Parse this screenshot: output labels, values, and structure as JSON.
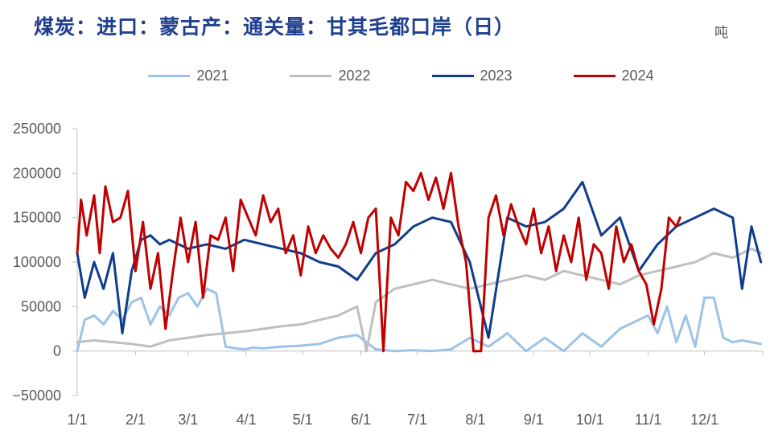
{
  "chart_data": {
    "type": "line",
    "title": "煤炭：进口：蒙古产：通关量：甘其毛都口岸（日）",
    "unit_label": "吨",
    "x_ticks": [
      "1/1",
      "2/1",
      "3/1",
      "4/1",
      "5/1",
      "6/1",
      "7/1",
      "8/1",
      "9/1",
      "10/1",
      "11/1",
      "12/1"
    ],
    "y_ticks": [
      "250000",
      "200000",
      "150000",
      "100000",
      "50000",
      "0",
      "−50000"
    ],
    "ylim": [
      -50000,
      250000
    ],
    "legend_position": "top-center",
    "series": [
      {
        "name": "2021",
        "color": "#9dc3e6",
        "x": [
          1,
          5,
          10,
          15,
          20,
          25,
          30,
          35,
          40,
          45,
          50,
          55,
          60,
          65,
          70,
          75,
          80,
          85,
          90,
          95,
          100,
          110,
          120,
          130,
          140,
          150,
          160,
          170,
          180,
          190,
          200,
          210,
          220,
          230,
          240,
          250,
          260,
          270,
          280,
          290,
          300,
          305,
          310,
          315,
          320,
          325,
          330,
          335,
          340,
          345,
          350,
          355,
          360,
          365
        ],
        "y": [
          0,
          35000,
          40000,
          30000,
          45000,
          35000,
          55000,
          60000,
          30000,
          50000,
          40000,
          60000,
          65000,
          50000,
          70000,
          65000,
          5000,
          3000,
          2000,
          4000,
          3000,
          5000,
          6000,
          8000,
          15000,
          18000,
          2000,
          0,
          1000,
          0,
          2000,
          15000,
          5000,
          20000,
          0,
          15000,
          0,
          20000,
          5000,
          25000,
          35000,
          40000,
          20000,
          50000,
          10000,
          40000,
          5000,
          60000,
          60000,
          15000,
          10000,
          12000,
          10000,
          8000
        ]
      },
      {
        "name": "2022",
        "color": "#bfbfbf",
        "x": [
          1,
          10,
          20,
          30,
          40,
          50,
          60,
          70,
          80,
          90,
          100,
          110,
          120,
          130,
          140,
          150,
          155,
          160,
          170,
          180,
          190,
          200,
          210,
          220,
          230,
          240,
          250,
          260,
          270,
          280,
          290,
          300,
          310,
          320,
          330,
          340,
          350,
          360,
          365
        ],
        "y": [
          10000,
          12000,
          10000,
          8000,
          5000,
          12000,
          15000,
          18000,
          20000,
          22000,
          25000,
          28000,
          30000,
          35000,
          40000,
          50000,
          0,
          55000,
          70000,
          75000,
          80000,
          75000,
          70000,
          75000,
          80000,
          85000,
          80000,
          90000,
          85000,
          80000,
          75000,
          85000,
          90000,
          95000,
          100000,
          110000,
          105000,
          115000,
          110000
        ]
      },
      {
        "name": "2023",
        "color": "#0f3d8c",
        "x": [
          1,
          5,
          10,
          15,
          20,
          25,
          30,
          35,
          40,
          45,
          50,
          60,
          70,
          80,
          90,
          100,
          110,
          120,
          130,
          140,
          150,
          160,
          170,
          180,
          190,
          200,
          210,
          220,
          230,
          240,
          250,
          260,
          270,
          280,
          290,
          300,
          310,
          320,
          330,
          340,
          350,
          355,
          360,
          365
        ],
        "y": [
          110000,
          60000,
          100000,
          70000,
          110000,
          20000,
          90000,
          125000,
          130000,
          120000,
          125000,
          115000,
          120000,
          115000,
          125000,
          120000,
          115000,
          110000,
          100000,
          95000,
          80000,
          110000,
          120000,
          140000,
          150000,
          145000,
          100000,
          15000,
          150000,
          140000,
          145000,
          160000,
          190000,
          130000,
          150000,
          90000,
          120000,
          140000,
          150000,
          160000,
          150000,
          70000,
          140000,
          100000
        ]
      },
      {
        "name": "2024",
        "color": "#c00000",
        "x": [
          1,
          3,
          6,
          10,
          13,
          16,
          20,
          24,
          28,
          32,
          36,
          40,
          44,
          48,
          52,
          56,
          60,
          64,
          68,
          72,
          76,
          80,
          84,
          88,
          92,
          96,
          100,
          104,
          108,
          112,
          116,
          120,
          124,
          128,
          132,
          136,
          140,
          144,
          148,
          152,
          156,
          160,
          164,
          168,
          172,
          176,
          180,
          184,
          188,
          192,
          196,
          200,
          204,
          208,
          212,
          216,
          220,
          224,
          228,
          232,
          236,
          240,
          244,
          248,
          252,
          256,
          260,
          264,
          268,
          272,
          276,
          280,
          284,
          288,
          292,
          296,
          300,
          304,
          308,
          312,
          316,
          320,
          322
        ],
        "y": [
          110000,
          170000,
          130000,
          175000,
          110000,
          185000,
          145000,
          150000,
          180000,
          90000,
          145000,
          70000,
          110000,
          25000,
          90000,
          150000,
          100000,
          145000,
          60000,
          130000,
          125000,
          150000,
          90000,
          170000,
          150000,
          130000,
          175000,
          145000,
          160000,
          110000,
          130000,
          85000,
          140000,
          110000,
          130000,
          115000,
          105000,
          120000,
          145000,
          110000,
          150000,
          160000,
          0,
          150000,
          130000,
          190000,
          180000,
          200000,
          170000,
          195000,
          160000,
          200000,
          140000,
          100000,
          0,
          0,
          150000,
          175000,
          130000,
          165000,
          140000,
          120000,
          160000,
          110000,
          140000,
          90000,
          130000,
          100000,
          150000,
          80000,
          120000,
          110000,
          70000,
          140000,
          100000,
          120000,
          90000,
          75000,
          30000,
          70000,
          150000,
          140000,
          150000
        ]
      }
    ]
  }
}
